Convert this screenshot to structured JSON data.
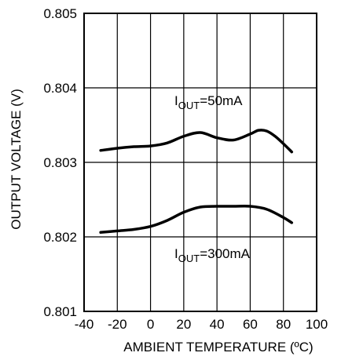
{
  "chart_data": {
    "type": "line",
    "title": "",
    "xlabel": "AMBIENT TEMPERATURE (ºC)",
    "ylabel": "OUTPUT VOLTAGE (V)",
    "xlim": [
      -40,
      100
    ],
    "ylim": [
      0.801,
      0.805
    ],
    "x_ticks": [
      "-40",
      "-20",
      "0",
      "20",
      "40",
      "60",
      "80",
      "100"
    ],
    "y_ticks": [
      "0.801",
      "0.802",
      "0.803",
      "0.804",
      "0.805"
    ],
    "grid": true,
    "series": [
      {
        "name": "IOUT=50mA",
        "label_parts": [
          "I",
          "OUT",
          "=50mA"
        ],
        "x": [
          -30,
          -20,
          -10,
          0,
          10,
          20,
          30,
          40,
          50,
          60,
          65,
          70,
          75,
          80,
          85
        ],
        "y": [
          0.80316,
          0.80319,
          0.80321,
          0.80322,
          0.80326,
          0.80335,
          0.8034,
          0.80333,
          0.8033,
          0.80338,
          0.80343,
          0.80342,
          0.80335,
          0.80325,
          0.80314
        ]
      },
      {
        "name": "IOUT=300mA",
        "label_parts": [
          "I",
          "OUT",
          "=300mA"
        ],
        "x": [
          -30,
          -20,
          -10,
          0,
          10,
          20,
          30,
          40,
          50,
          60,
          70,
          80,
          85
        ],
        "y": [
          0.80206,
          0.80208,
          0.8021,
          0.80214,
          0.80222,
          0.80233,
          0.8024,
          0.80241,
          0.80241,
          0.80241,
          0.80237,
          0.80226,
          0.80219
        ]
      }
    ]
  }
}
